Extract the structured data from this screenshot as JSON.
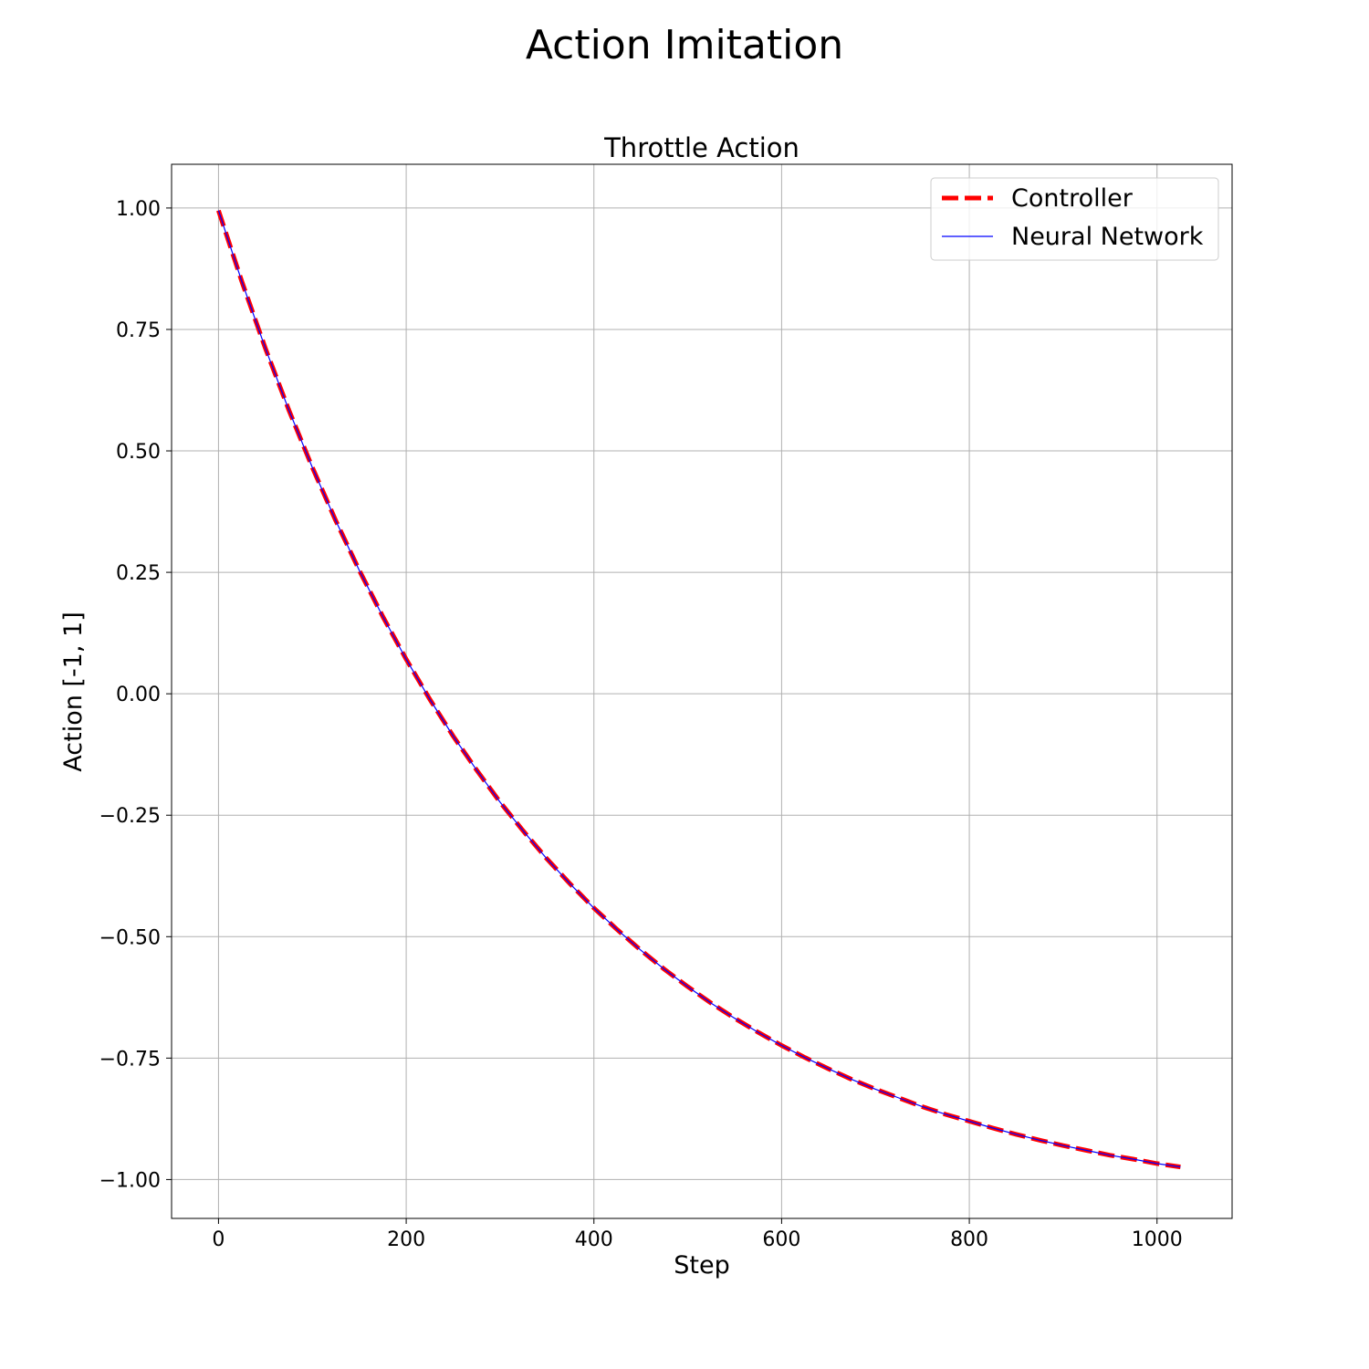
{
  "figure": {
    "suptitle": "Action Imitation"
  },
  "chart_data": {
    "type": "line",
    "title": "Throttle Action",
    "xlabel": "Step",
    "ylabel": "Action [-1, 1]",
    "xlim": [
      -50,
      1080
    ],
    "ylim": [
      -1.08,
      1.09
    ],
    "xticks": [
      0,
      200,
      400,
      600,
      800,
      1000
    ],
    "xtick_labels": [
      "0",
      "200",
      "400",
      "600",
      "800",
      "1000"
    ],
    "yticks": [
      1.0,
      0.75,
      0.5,
      0.25,
      0.0,
      -0.25,
      -0.5,
      -0.75,
      -1.0
    ],
    "ytick_labels": [
      "1.00",
      "0.75",
      "0.50",
      "0.25",
      "0.00",
      "−0.25",
      "−0.50",
      "−0.75",
      "−1.00"
    ],
    "grid": true,
    "legend_position": "top-right",
    "x": [
      0,
      25,
      50,
      75,
      100,
      125,
      150,
      175,
      200,
      225,
      250,
      275,
      300,
      325,
      350,
      375,
      400,
      425,
      450,
      475,
      500,
      525,
      550,
      575,
      600,
      625,
      650,
      675,
      700,
      725,
      750,
      775,
      800,
      825,
      850,
      875,
      900,
      925,
      950,
      975,
      1000,
      1025
    ],
    "series": [
      {
        "name": "Controller",
        "color": "#ff0000",
        "style": "dashed",
        "values": [
          0.995,
          0.848,
          0.711,
          0.584,
          0.466,
          0.356,
          0.254,
          0.159,
          0.071,
          -0.011,
          -0.087,
          -0.157,
          -0.223,
          -0.283,
          -0.34,
          -0.392,
          -0.441,
          -0.486,
          -0.528,
          -0.567,
          -0.603,
          -0.637,
          -0.668,
          -0.697,
          -0.724,
          -0.749,
          -0.772,
          -0.794,
          -0.814,
          -0.832,
          -0.85,
          -0.866,
          -0.88,
          -0.894,
          -0.907,
          -0.919,
          -0.93,
          -0.94,
          -0.95,
          -0.958,
          -0.967,
          -0.974
        ]
      },
      {
        "name": "Neural Network",
        "color": "#0000ff",
        "style": "solid",
        "values": [
          0.995,
          0.848,
          0.711,
          0.584,
          0.466,
          0.356,
          0.254,
          0.159,
          0.071,
          -0.011,
          -0.087,
          -0.157,
          -0.223,
          -0.283,
          -0.34,
          -0.392,
          -0.441,
          -0.486,
          -0.528,
          -0.567,
          -0.603,
          -0.637,
          -0.668,
          -0.697,
          -0.724,
          -0.749,
          -0.772,
          -0.794,
          -0.814,
          -0.832,
          -0.85,
          -0.866,
          -0.88,
          -0.894,
          -0.907,
          -0.919,
          -0.93,
          -0.94,
          -0.95,
          -0.958,
          -0.967,
          -0.974
        ]
      }
    ]
  }
}
